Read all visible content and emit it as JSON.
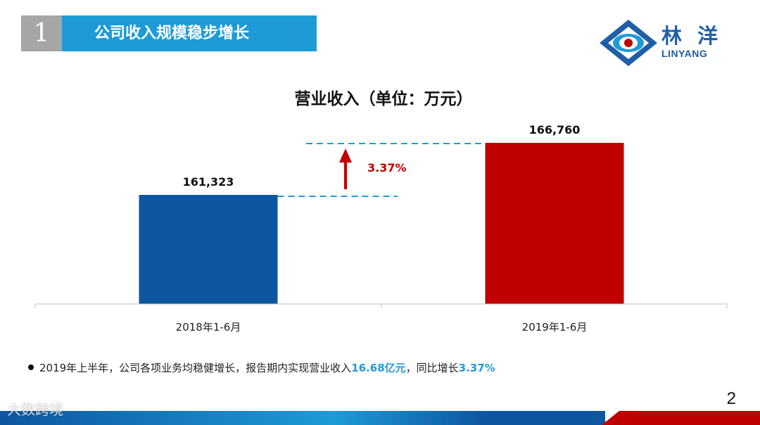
{
  "header": {
    "section_number": "1",
    "section_title": "公司收入规模稳步增长"
  },
  "logo": {
    "name_cn": "林 洋",
    "name_en": "LINYANG"
  },
  "chart_data": {
    "type": "bar",
    "title": "营业收入（单位：万元）",
    "categories": [
      "2018年1-6月",
      "2019年1-6月"
    ],
    "values": [
      161323,
      166760
    ],
    "value_labels": [
      "161,323",
      "166,760"
    ],
    "colors": [
      "#0e56a0",
      "#c00000"
    ],
    "growth_label": "3.37%",
    "growth_color": "#c00000",
    "guide_color": "#1e9bd7"
  },
  "bullet": {
    "text_before": "2019年上半年，公司各项业务均稳健增长，报告期内实现营业收入",
    "highlight_revenue": "16.68亿元",
    "text_middle": "，同比增长",
    "highlight_growth": "3.37%"
  },
  "page_number": "2",
  "watermark": "大数跨境",
  "colors": {
    "accent": "#1e9bd7",
    "number_box": "#a6a6a6",
    "footer_red": "#c00000"
  }
}
